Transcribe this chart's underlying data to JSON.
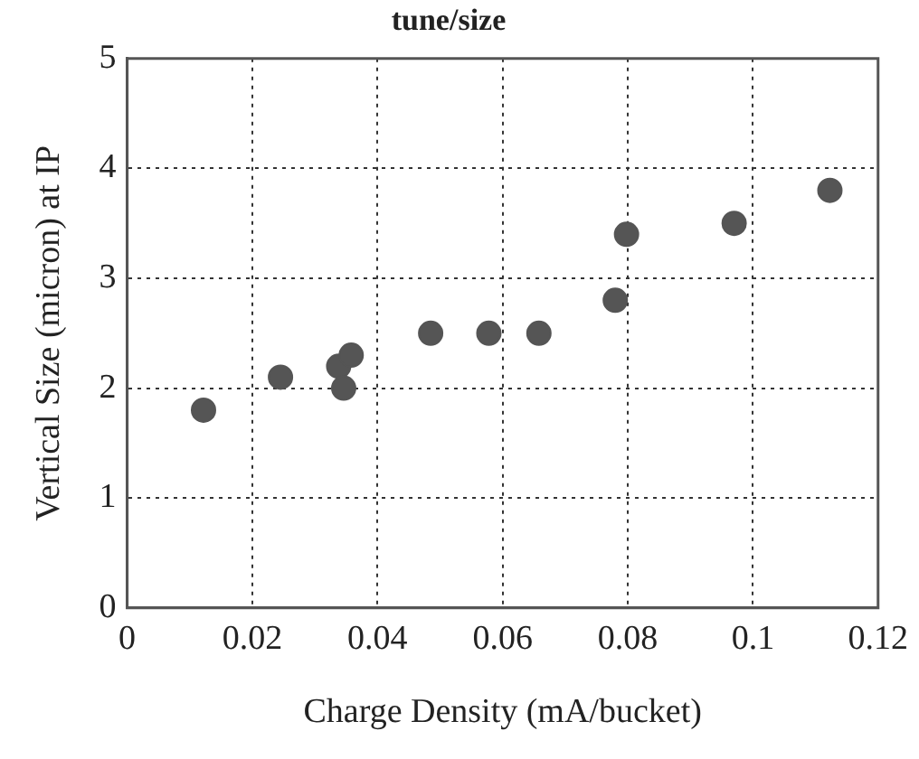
{
  "chart_data": {
    "type": "scatter",
    "title": "tune/size",
    "xlabel": "Charge Density (mA/bucket)",
    "ylabel": "Vertical Size (micron) at IP",
    "x": [
      0.0122,
      0.0245,
      0.0338,
      0.0346,
      0.0358,
      0.0485,
      0.0578,
      0.0658,
      0.078,
      0.0798,
      0.097,
      0.1123
    ],
    "series": [
      {
        "color": "#555555",
        "values": [
          1.8,
          2.1,
          2.2,
          2.0,
          2.3,
          2.5,
          2.5,
          2.5,
          2.8,
          3.4,
          3.5,
          3.8
        ]
      }
    ],
    "xlim": [
      0,
      0.12
    ],
    "xticks": [
      0,
      0.02,
      0.04,
      0.06,
      0.08,
      {
        "value": 0.1,
        "label": "0.1"
      },
      0.12
    ],
    "ylim": [
      0,
      5
    ],
    "yticks": [
      0,
      1,
      2,
      3,
      4,
      5
    ],
    "grid": true,
    "legend": false,
    "marker": "circle",
    "line_style": "dotted"
  }
}
